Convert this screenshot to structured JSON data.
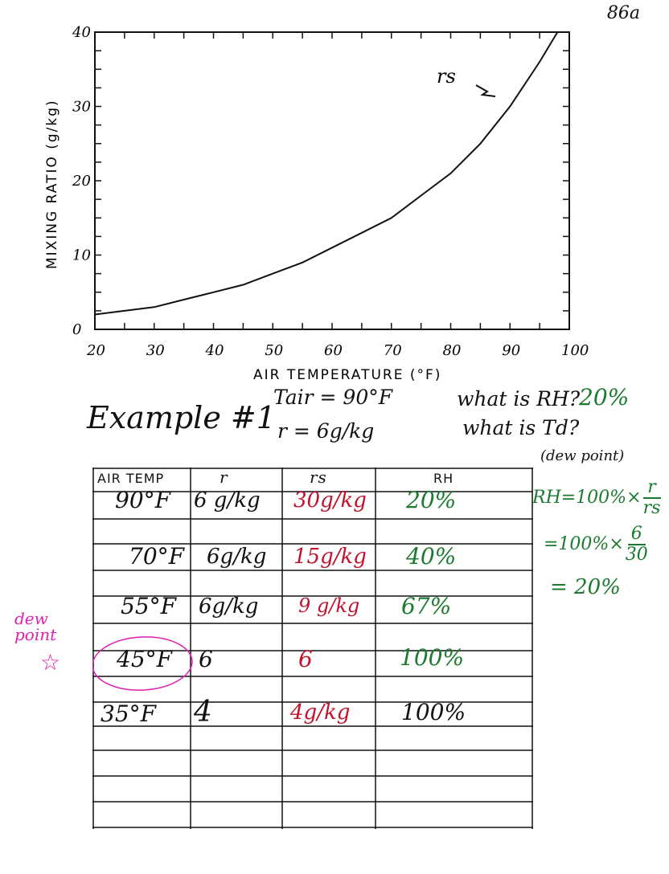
{
  "page_number": "86a",
  "chart_data": {
    "type": "line",
    "xlabel": "AIR TEMPERATURE (°F)",
    "ylabel": "MIXING RATIO (g/kg)",
    "xlim": [
      20,
      100
    ],
    "ylim": [
      0,
      40
    ],
    "x_ticks": [
      "20",
      "30",
      "40",
      "50",
      "60",
      "70",
      "80",
      "90",
      "100"
    ],
    "y_ticks": [
      "0",
      "10",
      "20",
      "30",
      "40"
    ],
    "series": [
      {
        "name": "rs",
        "x": [
          20,
          25,
          30,
          35,
          40,
          45,
          50,
          55,
          60,
          65,
          70,
          75,
          80,
          85,
          90,
          95,
          98
        ],
        "y": [
          2,
          2.5,
          3,
          4,
          5,
          6,
          7.5,
          9,
          11,
          13,
          15,
          18,
          21,
          25,
          30,
          36,
          40
        ]
      }
    ],
    "curve_label": "rs",
    "grid": false
  },
  "example": {
    "title": "Example #1",
    "tair": "Tair = 90°F",
    "r": "r = 6g/kg",
    "question_rh": "what is RH?",
    "answer_rh": "20%",
    "question_td": "what is Td?",
    "td_note": "(dew point)"
  },
  "formula": {
    "line1_prefix": "RH=100%×",
    "line1_num": "r",
    "line1_den": "rs",
    "line2_prefix": "=100%×",
    "line2_num": "6",
    "line2_den": "30",
    "line3": "= 20%"
  },
  "table": {
    "headers": [
      "AIR TEMP",
      "r",
      "rs",
      "RH"
    ],
    "rows": [
      {
        "temp": "90°F",
        "r": "6 g/kg",
        "rs": "30g/kg",
        "rh": "20%"
      },
      {
        "temp": "70°F",
        "r": "6g/kg",
        "rs": "15g/kg",
        "rh": "40%"
      },
      {
        "temp": "55°F",
        "r": "6g/kg",
        "rs": "9 g/kg",
        "rh": "67%"
      },
      {
        "temp": "45°F",
        "r": "6",
        "rs": "6",
        "rh": "100%"
      },
      {
        "temp": "35°F",
        "r": "4",
        "rs": "4g/kg",
        "rh": "100%"
      }
    ]
  },
  "dew_point_note": "dew point",
  "colors": {
    "ink": "#111111",
    "red": "#c4122c",
    "green": "#1a7a2e",
    "magenta": "#e01eb0"
  }
}
